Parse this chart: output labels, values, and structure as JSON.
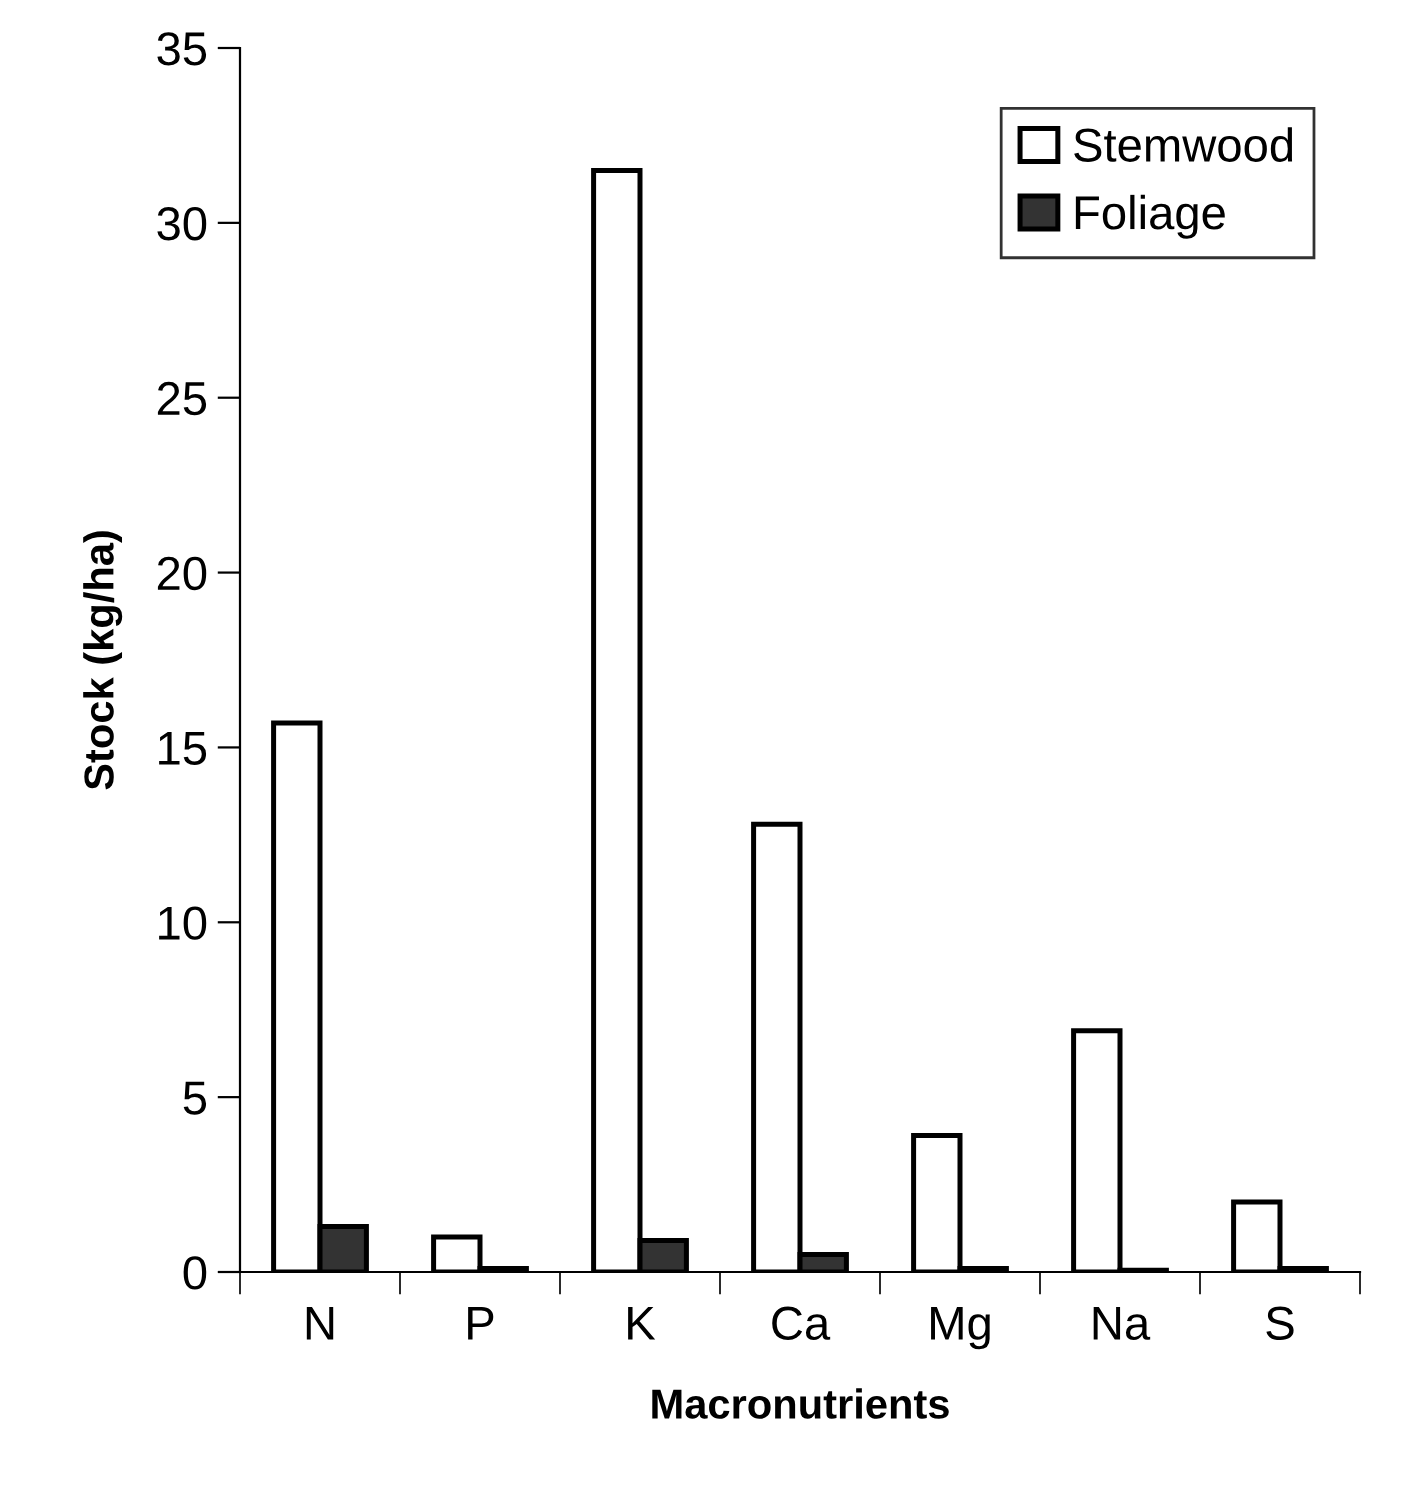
{
  "chart_data": {
    "type": "bar",
    "xlabel": "Macronutrients",
    "ylabel": "Stock (kg/ha)",
    "categories": [
      "N",
      "P",
      "K",
      "Ca",
      "Mg",
      "Na",
      "S"
    ],
    "series": [
      {
        "name": "Stemwood",
        "color": "#ffffff",
        "values": [
          15.7,
          1.0,
          31.5,
          12.8,
          3.9,
          6.9,
          2.0
        ]
      },
      {
        "name": "Foliage",
        "color": "#333333",
        "values": [
          1.3,
          0.1,
          0.9,
          0.5,
          0.1,
          0.05,
          0.1
        ]
      }
    ],
    "ylim": [
      0,
      35
    ],
    "yticks": [
      0,
      5,
      10,
      15,
      20,
      25,
      30,
      35
    ],
    "grid": false,
    "legend": "top right"
  }
}
